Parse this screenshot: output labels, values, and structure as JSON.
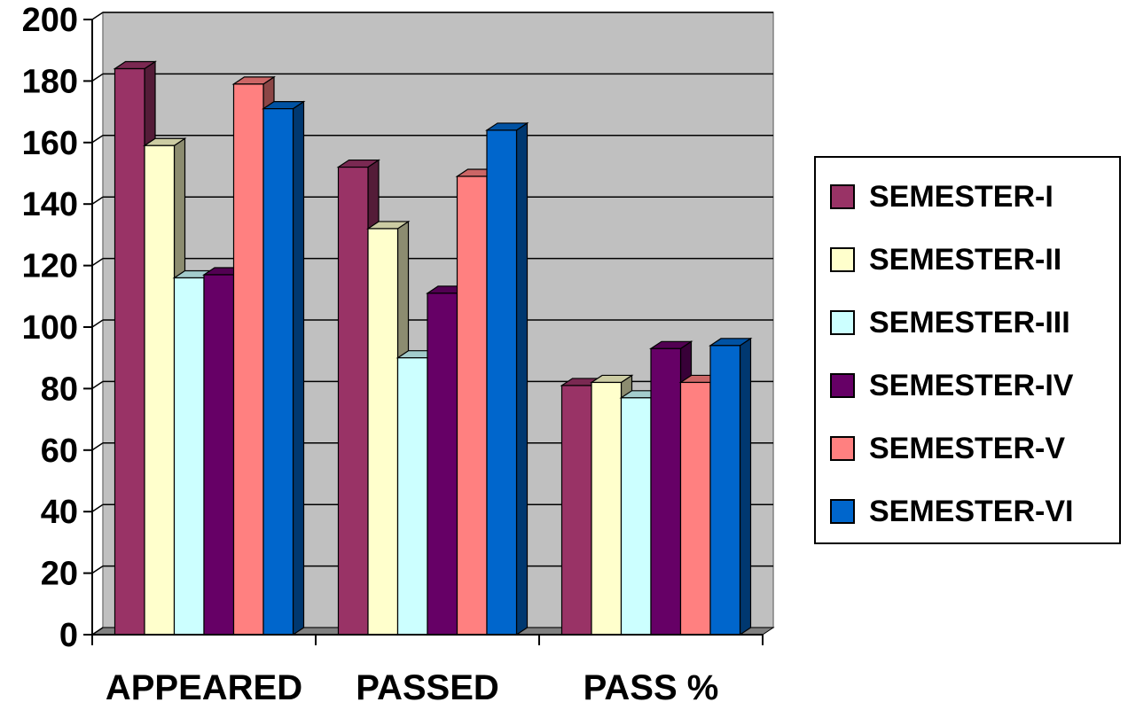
{
  "chart_data": {
    "type": "bar",
    "categories": [
      "APPEARED",
      "PASSED",
      "PASS %"
    ],
    "series": [
      {
        "name": "SEMESTER-I",
        "color": "#993366",
        "values": [
          184,
          152,
          81
        ]
      },
      {
        "name": "SEMESTER-II",
        "color": "#FFFFCC",
        "values": [
          159,
          132,
          82
        ]
      },
      {
        "name": "SEMESTER-III",
        "color": "#CCFFFF",
        "values": [
          116,
          90,
          77
        ]
      },
      {
        "name": "SEMESTER-IV",
        "color": "#660066",
        "values": [
          117,
          111,
          93
        ]
      },
      {
        "name": "SEMESTER-V",
        "color": "#FF8080",
        "values": [
          179,
          149,
          82
        ]
      },
      {
        "name": "SEMESTER-VI",
        "color": "#0066CC",
        "values": [
          171,
          164,
          94
        ]
      }
    ],
    "ylim": [
      0,
      200
    ],
    "yticks": [
      "0",
      "20",
      "40",
      "60",
      "80",
      "100",
      "120",
      "140",
      "160",
      "180",
      "200"
    ],
    "grid": true,
    "legend_position": "right",
    "plot_background": "#C0C0C0",
    "title": "",
    "xlabel": "",
    "ylabel": ""
  }
}
